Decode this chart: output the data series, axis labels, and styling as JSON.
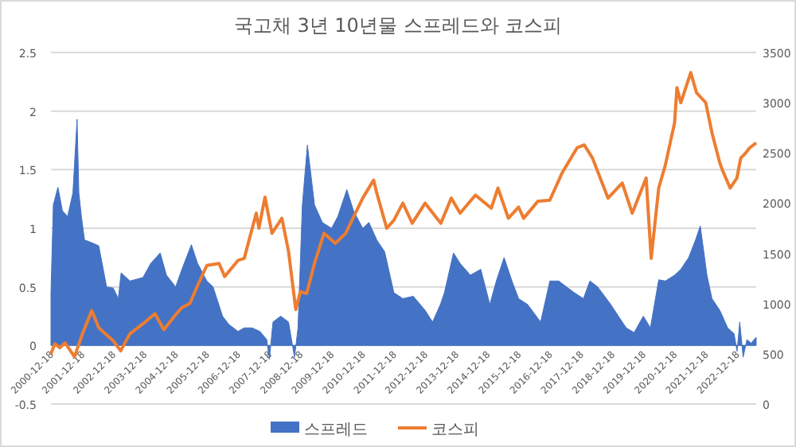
{
  "chart_data": {
    "type": "area",
    "title": "국고채 3년 10년물 스프레드와 코스피",
    "xlim": [
      "2000-12-18",
      "2023-08-01"
    ],
    "xticks": [
      "2000-12-18",
      "2001-12-18",
      "2002-12-18",
      "2003-12-18",
      "2004-12-18",
      "2005-12-18",
      "2006-12-18",
      "2007-12-18",
      "2008-12-18",
      "2009-12-18",
      "2010-12-18",
      "2011-12-18",
      "2012-12-18",
      "2013-12-18",
      "2014-12-18",
      "2015-12-18",
      "2016-12-18",
      "2017-12-18",
      "2018-12-18",
      "2019-12-18",
      "2020-12-18",
      "2021-12-18",
      "2022-12-18"
    ],
    "ylim": [
      -0.5,
      2.5
    ],
    "yticks": [
      -0.5,
      0,
      0.5,
      1,
      1.5,
      2,
      2.5
    ],
    "y2lim": [
      0,
      3500
    ],
    "y2ticks": [
      0,
      500,
      1000,
      1500,
      2000,
      2500,
      3000,
      3500
    ],
    "grid": "y",
    "legend": "bottom",
    "series": [
      {
        "name": "스프레드",
        "color": "#4472c4",
        "x": [
          "2000-12-18",
          "2001-01-15",
          "2001-03-10",
          "2001-05-01",
          "2001-07-01",
          "2001-09-01",
          "2001-10-20",
          "2001-11-10",
          "2001-12-10",
          "2002-01-15",
          "2002-04-01",
          "2002-07-01",
          "2002-10-01",
          "2002-12-18",
          "2003-02-15",
          "2003-03-20",
          "2003-07-01",
          "2003-12-01",
          "2004-03-01",
          "2004-06-20",
          "2004-09-01",
          "2004-12-18",
          "2005-03-01",
          "2005-06-20",
          "2005-09-01",
          "2005-12-18",
          "2006-03-01",
          "2006-06-20",
          "2006-09-01",
          "2006-12-18",
          "2007-03-01",
          "2007-06-01",
          "2007-09-01",
          "2007-11-20",
          "2007-12-20",
          "2008-02-01",
          "2008-05-01",
          "2008-08-01",
          "2008-10-10",
          "2008-11-20",
          "2009-01-10",
          "2009-03-10",
          "2009-06-01",
          "2009-09-01",
          "2009-12-18",
          "2010-03-01",
          "2010-06-15",
          "2010-09-01",
          "2010-12-18",
          "2011-03-01",
          "2011-06-01",
          "2011-09-01",
          "2011-12-18",
          "2012-04-01",
          "2012-08-01",
          "2012-12-18",
          "2013-03-15",
          "2013-06-15",
          "2013-08-01",
          "2013-11-15",
          "2014-02-01",
          "2014-06-01",
          "2014-10-01",
          "2015-01-15",
          "2015-04-01",
          "2015-07-01",
          "2015-10-01",
          "2015-12-18",
          "2016-04-01",
          "2016-09-01",
          "2016-12-18",
          "2017-04-01",
          "2017-07-01",
          "2017-10-01",
          "2018-01-15",
          "2018-04-01",
          "2018-07-01",
          "2018-12-01",
          "2019-03-01",
          "2019-06-01",
          "2019-09-01",
          "2019-12-18",
          "2020-03-10",
          "2020-06-15",
          "2020-09-01",
          "2020-12-18",
          "2021-03-01",
          "2021-06-01",
          "2021-08-20",
          "2021-10-15",
          "2022-01-01",
          "2022-03-01",
          "2022-06-01",
          "2022-09-01",
          "2022-11-15",
          "2022-12-20",
          "2023-01-20",
          "2023-03-01",
          "2023-04-15",
          "2023-06-01",
          "2023-08-01"
        ],
        "values": [
          0.45,
          1.2,
          1.35,
          1.15,
          1.1,
          1.3,
          1.93,
          1.3,
          1.1,
          0.9,
          0.88,
          0.85,
          0.5,
          0.49,
          0.4,
          0.62,
          0.55,
          0.58,
          0.7,
          0.79,
          0.6,
          0.5,
          0.65,
          0.86,
          0.7,
          0.55,
          0.5,
          0.25,
          0.18,
          0.12,
          0.15,
          0.15,
          0.12,
          0.05,
          -0.12,
          0.2,
          0.25,
          0.2,
          -0.1,
          0.15,
          1.2,
          1.71,
          1.2,
          1.05,
          1.0,
          1.1,
          1.33,
          1.15,
          1.0,
          1.05,
          0.9,
          0.8,
          0.45,
          0.4,
          0.42,
          0.3,
          0.2,
          0.35,
          0.45,
          0.79,
          0.7,
          0.6,
          0.65,
          0.35,
          0.55,
          0.75,
          0.55,
          0.4,
          0.35,
          0.2,
          0.55,
          0.55,
          0.5,
          0.45,
          0.4,
          0.55,
          0.5,
          0.35,
          0.25,
          0.15,
          0.11,
          0.25,
          0.15,
          0.56,
          0.55,
          0.6,
          0.65,
          0.75,
          0.9,
          1.02,
          0.6,
          0.4,
          0.3,
          0.15,
          0.1,
          -0.05,
          0.2,
          -0.1,
          0.05,
          0.02,
          0.07
        ]
      },
      {
        "name": "코스피",
        "type": "line",
        "axis": "y2",
        "color": "#ed7d31",
        "x": [
          "2000-12-18",
          "2001-02-01",
          "2001-04-01",
          "2001-06-01",
          "2001-09-20",
          "2001-12-18",
          "2002-04-10",
          "2002-07-01",
          "2002-09-01",
          "2002-12-18",
          "2003-03-15",
          "2003-07-01",
          "2003-12-18",
          "2004-04-20",
          "2004-08-01",
          "2004-12-18",
          "2005-03-01",
          "2005-06-01",
          "2005-09-01",
          "2005-12-18",
          "2006-05-10",
          "2006-07-15",
          "2006-12-18",
          "2007-03-01",
          "2007-07-20",
          "2007-08-20",
          "2007-10-30",
          "2008-01-20",
          "2008-05-15",
          "2008-08-01",
          "2008-10-25",
          "2008-12-18",
          "2009-03-01",
          "2009-06-01",
          "2009-09-20",
          "2010-02-01",
          "2010-06-01",
          "2010-12-18",
          "2011-04-25",
          "2011-06-01",
          "2011-09-25",
          "2011-12-18",
          "2012-04-01",
          "2012-07-20",
          "2012-12-18",
          "2013-06-20",
          "2013-10-20",
          "2014-02-01",
          "2014-07-30",
          "2015-02-01",
          "2015-04-20",
          "2015-08-20",
          "2015-12-18",
          "2016-02-15",
          "2016-08-01",
          "2016-12-18",
          "2017-05-10",
          "2017-11-01",
          "2018-01-25",
          "2018-05-01",
          "2018-10-30",
          "2019-04-15",
          "2019-08-10",
          "2020-01-20",
          "2020-03-19",
          "2020-06-15",
          "2020-09-01",
          "2020-12-18",
          "2021-01-15",
          "2021-03-01",
          "2021-06-25",
          "2021-09-01",
          "2021-12-18",
          "2022-03-01",
          "2022-06-01",
          "2022-07-01",
          "2022-09-30",
          "2022-12-18",
          "2023-02-01",
          "2023-04-01",
          "2023-05-15",
          "2023-08-01"
        ],
        "values": [
          500,
          600,
          560,
          610,
          470,
          690,
          930,
          760,
          710,
          630,
          530,
          700,
          810,
          900,
          740,
          890,
          960,
          1000,
          1180,
          1380,
          1400,
          1270,
          1430,
          1450,
          1900,
          1750,
          2060,
          1700,
          1850,
          1520,
          940,
          1120,
          1100,
          1400,
          1700,
          1600,
          1700,
          2050,
          2230,
          2100,
          1750,
          1830,
          2000,
          1800,
          2000,
          1800,
          2050,
          1900,
          2080,
          1950,
          2150,
          1850,
          1960,
          1850,
          2020,
          2030,
          2300,
          2550,
          2580,
          2450,
          2050,
          2200,
          1900,
          2250,
          1450,
          2150,
          2380,
          2800,
          3150,
          3000,
          3300,
          3100,
          3000,
          2700,
          2400,
          2330,
          2150,
          2250,
          2450,
          2500,
          2550,
          2600
        ]
      }
    ]
  }
}
